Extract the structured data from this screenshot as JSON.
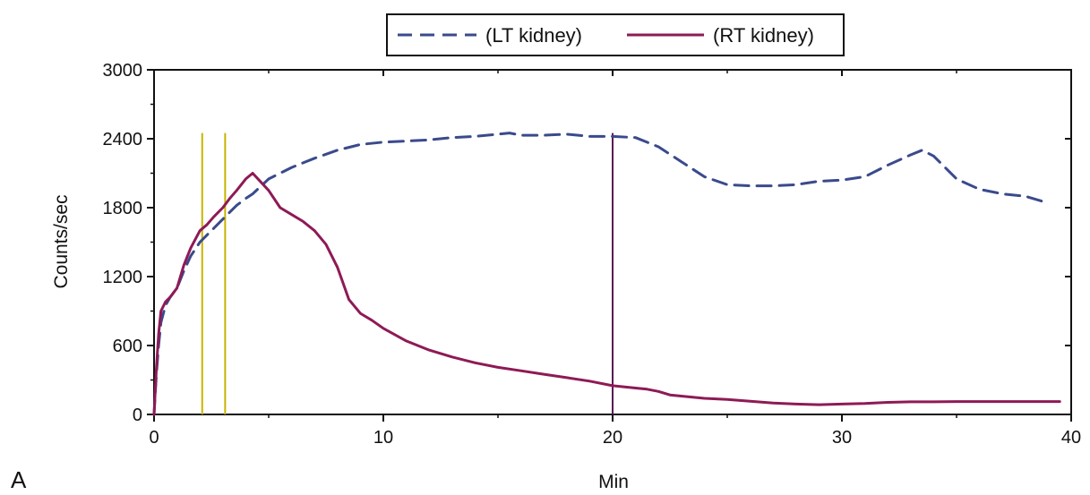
{
  "chart_data": {
    "type": "line",
    "title": "",
    "xlabel": "Min",
    "ylabel": "Counts/sec",
    "panel_label": "A",
    "xlim": [
      0,
      40
    ],
    "ylim": [
      0,
      3000
    ],
    "x_ticks": [
      0,
      10,
      20,
      30,
      40
    ],
    "y_ticks": [
      0,
      600,
      1200,
      1800,
      2400,
      3000
    ],
    "grid": false,
    "legend_position": "top-center",
    "series": [
      {
        "name": "(LT kidney)",
        "color": "#3a4a8c",
        "style": "dashed",
        "x": [
          0,
          0.1,
          0.2,
          0.3,
          0.5,
          0.7,
          1.0,
          1.3,
          1.6,
          2.0,
          2.3,
          2.6,
          3.0,
          3.3,
          3.6,
          4.0,
          4.3,
          5.0,
          6.0,
          7.0,
          8.0,
          9.0,
          10.0,
          11.0,
          12.0,
          13.0,
          14.0,
          15.0,
          15.5,
          16.0,
          17.0,
          18.0,
          19.0,
          20.0,
          21.0,
          22.0,
          23.0,
          24.0,
          25.0,
          26.0,
          27.0,
          28.0,
          29.0,
          30.0,
          31.0,
          32.0,
          33.0,
          33.5,
          34.0,
          35.0,
          36.0,
          37.0,
          38.0,
          39.0
        ],
        "y": [
          0,
          350,
          600,
          800,
          950,
          1020,
          1100,
          1250,
          1380,
          1500,
          1560,
          1620,
          1700,
          1760,
          1820,
          1880,
          1920,
          2050,
          2150,
          2230,
          2300,
          2350,
          2370,
          2380,
          2390,
          2410,
          2420,
          2440,
          2450,
          2430,
          2430,
          2440,
          2420,
          2420,
          2410,
          2330,
          2200,
          2070,
          2000,
          1990,
          1990,
          2000,
          2030,
          2040,
          2070,
          2170,
          2260,
          2300,
          2250,
          2050,
          1960,
          1920,
          1900,
          1840
        ]
      },
      {
        "name": "(RT kidney)",
        "color": "#8e1a55",
        "style": "solid",
        "x": [
          0,
          0.1,
          0.2,
          0.3,
          0.5,
          0.7,
          1.0,
          1.3,
          1.6,
          2.0,
          2.3,
          2.6,
          3.0,
          3.3,
          3.6,
          4.0,
          4.3,
          5.0,
          5.5,
          6.0,
          6.5,
          7.0,
          7.5,
          8.0,
          8.5,
          9.0,
          9.5,
          10.0,
          11.0,
          12.0,
          13.0,
          14.0,
          15.0,
          16.0,
          17.0,
          18.0,
          19.0,
          20.0,
          21.0,
          21.5,
          22.0,
          22.5,
          23.0,
          24.0,
          25.0,
          26.0,
          27.0,
          28.0,
          29.0,
          30.0,
          31.0,
          32.0,
          33.0,
          34.0,
          35.0,
          36.0,
          37.0,
          38.0,
          39.0,
          39.5
        ],
        "y": [
          0,
          400,
          700,
          900,
          980,
          1020,
          1100,
          1300,
          1450,
          1600,
          1650,
          1720,
          1800,
          1880,
          1950,
          2050,
          2100,
          1950,
          1800,
          1740,
          1680,
          1600,
          1480,
          1280,
          1000,
          880,
          820,
          750,
          640,
          560,
          500,
          450,
          410,
          380,
          350,
          320,
          290,
          250,
          230,
          220,
          200,
          170,
          160,
          140,
          130,
          115,
          100,
          90,
          85,
          90,
          95,
          105,
          110,
          110,
          112,
          112,
          112,
          112,
          112,
          112
        ]
      }
    ],
    "annotations": [
      {
        "type": "vertical-line",
        "x": 2.1,
        "y_top": 2450,
        "color": "#c8b400"
      },
      {
        "type": "vertical-line",
        "x": 3.1,
        "y_top": 2450,
        "color": "#c8b400"
      },
      {
        "type": "vertical-line",
        "x": 20.0,
        "y_top": 2450,
        "color": "#5a1850"
      }
    ]
  }
}
